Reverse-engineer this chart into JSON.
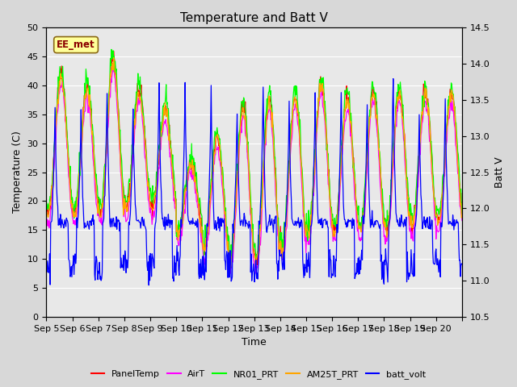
{
  "title": "Temperature and Batt V",
  "xlabel": "Time",
  "ylabel_left": "Temperature (C)",
  "ylabel_right": "Batt V",
  "annotation": "EE_met",
  "annotation_color": "#8B0000",
  "annotation_bg": "#FFFF99",
  "ylim_left": [
    0,
    50
  ],
  "ylim_right": [
    10.5,
    14.5
  ],
  "yticks_left": [
    0,
    5,
    10,
    15,
    20,
    25,
    30,
    35,
    40,
    45,
    50
  ],
  "yticks_right": [
    10.5,
    11.0,
    11.5,
    12.0,
    12.5,
    13.0,
    13.5,
    14.0,
    14.5
  ],
  "bg_color": "#D8D8D8",
  "plot_bg": "#E8E8E8",
  "grid_color": "#FFFFFF",
  "legend_entries": [
    "PanelTemp",
    "AirT",
    "NR01_PRT",
    "AM25T_PRT",
    "batt_volt"
  ],
  "legend_colors": [
    "red",
    "magenta",
    "lime",
    "orange",
    "blue"
  ],
  "series_colors": {
    "PanelTemp": "red",
    "AirT": "magenta",
    "NR01_PRT": "lime",
    "AM25T_PRT": "orange",
    "batt_volt": "blue"
  },
  "n_days": 16,
  "day_labels": [
    "Sep 5",
    "Sep 6",
    "Sep 7",
    "Sep 8",
    "Sep 9",
    "Sep 10",
    "Sep 11",
    "Sep 12",
    "Sep 13",
    "Sep 14",
    "Sep 15",
    "Sep 16",
    "Sep 17",
    "Sep 18",
    "Sep 19",
    "Sep 20"
  ],
  "title_fontsize": 11,
  "label_fontsize": 9,
  "tick_fontsize": 8
}
